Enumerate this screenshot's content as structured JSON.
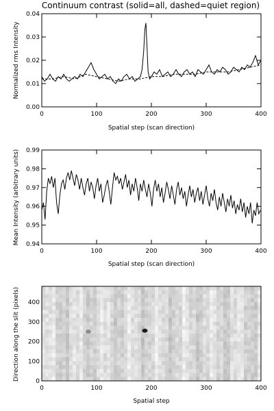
{
  "chart_data": [
    {
      "type": "line",
      "title": "Continuum contrast (solid=all, dashed=quiet region)",
      "xlabel": "Spatial step (scan direction)",
      "ylabel": "Normalized rms Intensity",
      "xlim": [
        0,
        400
      ],
      "ylim": [
        0.0,
        0.04
      ],
      "xticks": [
        0,
        100,
        200,
        300,
        400
      ],
      "yticks": [
        0.0,
        0.01,
        0.02,
        0.03,
        0.04
      ],
      "xtick_labels": [
        "0",
        "100",
        "200",
        "300",
        "400"
      ],
      "ytick_labels": [
        "0.00",
        "0.01",
        "0.02",
        "0.03",
        "0.04"
      ],
      "grid": false,
      "series": [
        {
          "style": "solid",
          "x": [
            0,
            5,
            10,
            15,
            20,
            25,
            30,
            35,
            40,
            45,
            50,
            55,
            60,
            65,
            70,
            75,
            80,
            85,
            90,
            95,
            100,
            105,
            110,
            115,
            120,
            125,
            130,
            135,
            140,
            145,
            150,
            155,
            160,
            165,
            170,
            175,
            180,
            183,
            186,
            188,
            190,
            192,
            194,
            197,
            200,
            205,
            210,
            215,
            220,
            225,
            230,
            235,
            240,
            245,
            250,
            255,
            260,
            265,
            270,
            275,
            280,
            285,
            290,
            295,
            300,
            305,
            310,
            315,
            320,
            325,
            330,
            335,
            340,
            345,
            350,
            355,
            360,
            365,
            370,
            375,
            380,
            385,
            390,
            395,
            400
          ],
          "y": [
            0.013,
            0.011,
            0.012,
            0.014,
            0.012,
            0.011,
            0.013,
            0.012,
            0.014,
            0.012,
            0.011,
            0.012,
            0.013,
            0.012,
            0.014,
            0.013,
            0.015,
            0.017,
            0.019,
            0.016,
            0.014,
            0.012,
            0.013,
            0.014,
            0.012,
            0.013,
            0.011,
            0.01,
            0.012,
            0.011,
            0.013,
            0.014,
            0.012,
            0.013,
            0.011,
            0.012,
            0.013,
            0.016,
            0.024,
            0.033,
            0.036,
            0.026,
            0.015,
            0.012,
            0.013,
            0.015,
            0.014,
            0.016,
            0.013,
            0.014,
            0.015,
            0.013,
            0.014,
            0.016,
            0.014,
            0.013,
            0.015,
            0.016,
            0.014,
            0.015,
            0.013,
            0.016,
            0.015,
            0.014,
            0.016,
            0.018,
            0.015,
            0.014,
            0.016,
            0.015,
            0.017,
            0.016,
            0.014,
            0.015,
            0.017,
            0.016,
            0.015,
            0.017,
            0.016,
            0.018,
            0.017,
            0.019,
            0.022,
            0.018,
            0.02
          ]
        },
        {
          "style": "dashed",
          "x": [
            0,
            20,
            40,
            60,
            80,
            100,
            120,
            140,
            160,
            180,
            200,
            220,
            240,
            260,
            280,
            300,
            320,
            340,
            360,
            380,
            400
          ],
          "y": [
            0.012,
            0.012,
            0.013,
            0.012,
            0.014,
            0.013,
            0.012,
            0.011,
            0.012,
            0.012,
            0.013,
            0.013,
            0.014,
            0.014,
            0.014,
            0.015,
            0.015,
            0.015,
            0.016,
            0.017,
            0.018
          ]
        }
      ]
    },
    {
      "type": "line",
      "title": "",
      "xlabel": "Spatial step (scan direction)",
      "ylabel": "Mean Intensity (arbitrary units)",
      "xlim": [
        0,
        400
      ],
      "ylim": [
        0.94,
        0.99
      ],
      "xticks": [
        0,
        100,
        200,
        300,
        400
      ],
      "yticks": [
        0.94,
        0.95,
        0.96,
        0.97,
        0.98,
        0.99
      ],
      "xtick_labels": [
        "0",
        "100",
        "200",
        "300",
        "400"
      ],
      "ytick_labels": [
        "0.94",
        "0.95",
        "0.96",
        "0.97",
        "0.98",
        "0.99"
      ],
      "grid": false,
      "series": [
        {
          "style": "solid",
          "x": [
            0,
            3,
            6,
            9,
            12,
            15,
            18,
            21,
            24,
            27,
            30,
            33,
            36,
            39,
            42,
            45,
            48,
            51,
            54,
            57,
            60,
            63,
            66,
            69,
            72,
            75,
            78,
            81,
            84,
            87,
            90,
            93,
            96,
            99,
            102,
            105,
            108,
            111,
            114,
            117,
            120,
            123,
            126,
            129,
            132,
            135,
            138,
            141,
            144,
            147,
            150,
            153,
            156,
            159,
            162,
            165,
            168,
            171,
            174,
            177,
            180,
            183,
            186,
            189,
            192,
            195,
            198,
            201,
            204,
            207,
            210,
            213,
            216,
            219,
            222,
            225,
            228,
            231,
            234,
            237,
            240,
            243,
            246,
            249,
            252,
            255,
            258,
            261,
            264,
            267,
            270,
            273,
            276,
            279,
            282,
            285,
            288,
            291,
            294,
            297,
            300,
            303,
            306,
            309,
            312,
            315,
            318,
            321,
            324,
            327,
            330,
            333,
            336,
            339,
            342,
            345,
            348,
            351,
            354,
            357,
            360,
            363,
            366,
            369,
            372,
            375,
            378,
            381,
            384,
            387,
            390,
            393,
            396,
            399
          ],
          "y": [
            0.958,
            0.962,
            0.953,
            0.968,
            0.975,
            0.972,
            0.976,
            0.97,
            0.975,
            0.962,
            0.956,
            0.966,
            0.972,
            0.974,
            0.969,
            0.975,
            0.978,
            0.974,
            0.979,
            0.975,
            0.971,
            0.977,
            0.974,
            0.969,
            0.975,
            0.97,
            0.966,
            0.972,
            0.975,
            0.968,
            0.973,
            0.97,
            0.964,
            0.971,
            0.975,
            0.968,
            0.972,
            0.962,
            0.966,
            0.971,
            0.974,
            0.968,
            0.961,
            0.97,
            0.978,
            0.974,
            0.976,
            0.972,
            0.975,
            0.969,
            0.973,
            0.977,
            0.97,
            0.974,
            0.966,
            0.972,
            0.968,
            0.975,
            0.97,
            0.963,
            0.972,
            0.968,
            0.974,
            0.969,
            0.965,
            0.972,
            0.967,
            0.96,
            0.969,
            0.974,
            0.968,
            0.972,
            0.965,
            0.97,
            0.962,
            0.967,
            0.973,
            0.969,
            0.964,
            0.971,
            0.966,
            0.961,
            0.969,
            0.973,
            0.966,
            0.97,
            0.964,
            0.968,
            0.96,
            0.966,
            0.971,
            0.965,
            0.969,
            0.962,
            0.967,
            0.97,
            0.963,
            0.968,
            0.961,
            0.966,
            0.971,
            0.964,
            0.96,
            0.967,
            0.963,
            0.969,
            0.962,
            0.958,
            0.965,
            0.96,
            0.967,
            0.962,
            0.957,
            0.964,
            0.96,
            0.966,
            0.959,
            0.963,
            0.956,
            0.961,
            0.958,
            0.964,
            0.957,
            0.962,
            0.954,
            0.96,
            0.956,
            0.962,
            0.951,
            0.958,
            0.955,
            0.962,
            0.956,
            0.958
          ]
        }
      ]
    },
    {
      "type": "heatmap",
      "title": "",
      "xlabel": "Spatial step",
      "ylabel": "Direction along the slit (pixels)",
      "xlim": [
        0,
        400
      ],
      "ylim": [
        0,
        480
      ],
      "xticks": [
        0,
        100,
        200,
        300,
        400
      ],
      "yticks": [
        0,
        100,
        200,
        300,
        400
      ],
      "xtick_labels": [
        "0",
        "100",
        "200",
        "300",
        "400"
      ],
      "ytick_labels": [
        "0",
        "100",
        "200",
        "300",
        "400"
      ],
      "colormap": "grayscale",
      "background_level": 0.85,
      "features": [
        {
          "x": 188,
          "y": 255,
          "intensity": 0.1
        },
        {
          "x": 85,
          "y": 250,
          "intensity": 0.55
        }
      ]
    }
  ]
}
